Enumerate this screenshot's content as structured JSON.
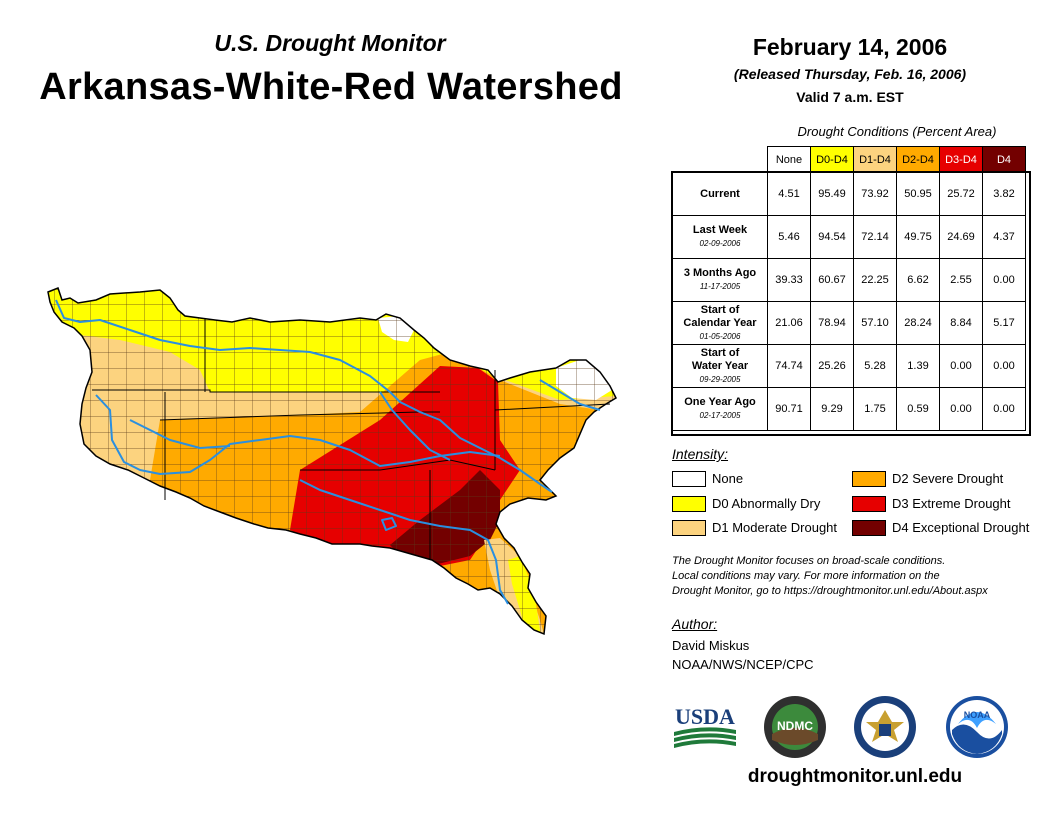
{
  "header": {
    "subtitle": "U.S. Drought Monitor",
    "title": "Arkansas-White-Red Watershed",
    "date": "February 14, 2006",
    "released": "(Released Thursday, Feb. 16, 2006)",
    "valid": "Valid 7 a.m. EST"
  },
  "table": {
    "title": "Drought Conditions (Percent Area)",
    "columns": [
      "None",
      "D0-D4",
      "D1-D4",
      "D2-D4",
      "D3-D4",
      "D4"
    ],
    "rows": [
      {
        "label": "Current",
        "label2": "",
        "date": "",
        "values": [
          "4.51",
          "95.49",
          "73.92",
          "50.95",
          "25.72",
          "3.82"
        ]
      },
      {
        "label": "Last Week",
        "label2": "",
        "date": "02-09-2006",
        "values": [
          "5.46",
          "94.54",
          "72.14",
          "49.75",
          "24.69",
          "4.37"
        ]
      },
      {
        "label": "3 Months Ago",
        "label2": "",
        "date": "11-17-2005",
        "values": [
          "39.33",
          "60.67",
          "22.25",
          "6.62",
          "2.55",
          "0.00"
        ]
      },
      {
        "label": "Start of",
        "label2": "Calendar Year",
        "date": "01-05-2006",
        "values": [
          "21.06",
          "78.94",
          "57.10",
          "28.24",
          "8.84",
          "5.17"
        ]
      },
      {
        "label": "Start of",
        "label2": "Water Year",
        "date": "09-29-2005",
        "values": [
          "74.74",
          "25.26",
          "5.28",
          "1.39",
          "0.00",
          "0.00"
        ]
      },
      {
        "label": "One Year Ago",
        "label2": "",
        "date": "02-17-2005",
        "values": [
          "90.71",
          "9.29",
          "1.75",
          "0.59",
          "0.00",
          "0.00"
        ]
      }
    ]
  },
  "legend": {
    "title": "Intensity:",
    "items": [
      {
        "label": "None",
        "color": "#ffffff"
      },
      {
        "label": "D0 Abnormally Dry",
        "color": "#ffff00"
      },
      {
        "label": "D1 Moderate Drought",
        "color": "#fcd37f"
      },
      {
        "label": "D2 Severe Drought",
        "color": "#ffaa00"
      },
      {
        "label": "D3 Extreme Drought",
        "color": "#e60000"
      },
      {
        "label": "D4 Exceptional Drought",
        "color": "#730000"
      }
    ]
  },
  "note": {
    "line1": "The Drought Monitor focuses on broad-scale conditions.",
    "line2": "Local conditions may vary. For more information on the",
    "line3": "Drought Monitor, go to https://droughtmonitor.unl.edu/About.aspx"
  },
  "author": {
    "heading": "Author:",
    "name": "David Miskus",
    "org": "NOAA/NWS/NCEP/CPC"
  },
  "logos": {
    "usda": "USDA",
    "ndmc": "NDMC",
    "noaa": "NOAA"
  },
  "footer_url": "droughtmonitor.unl.edu",
  "colors": {
    "river": "#2a8fe0",
    "county_line": "#5a3a1a"
  }
}
